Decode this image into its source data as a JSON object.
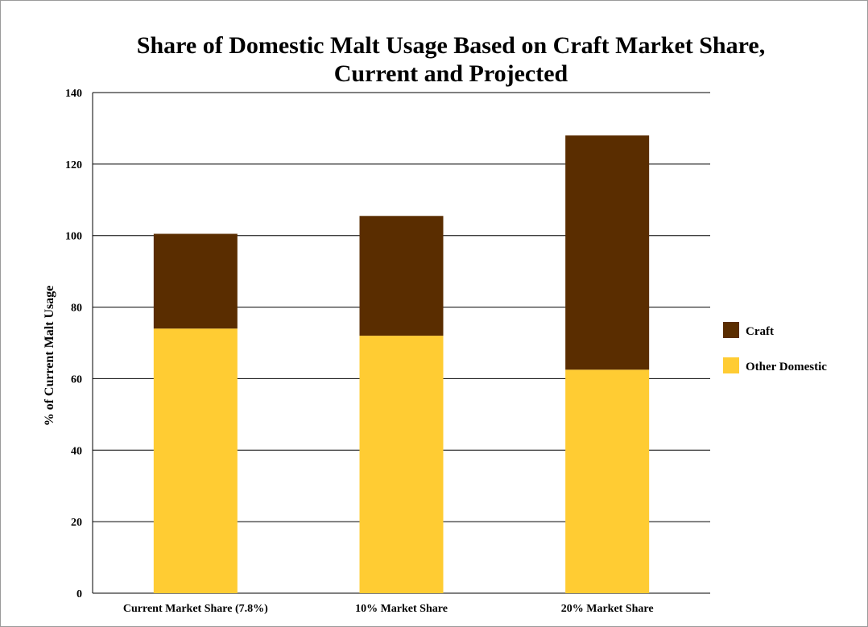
{
  "chart_data": {
    "type": "bar",
    "stacked": true,
    "title": "Share of Domestic Malt Usage Based on Craft Market Share, Current and Projected",
    "title_lines": [
      "Share of Domestic Malt Usage Based on Craft Market Share,",
      "Current and Projected"
    ],
    "xlabel": "",
    "ylabel": "% of Current Malt Usage",
    "ylim": [
      0,
      140
    ],
    "yticks": [
      0,
      20,
      40,
      60,
      80,
      100,
      120,
      140
    ],
    "grid": true,
    "legend_position": "right",
    "categories": [
      "Current Market Share (7.8%)",
      "10% Market Share",
      "20% Market Share"
    ],
    "series": [
      {
        "name": "Other Domestic",
        "color": "#FFCC33",
        "values": [
          74,
          72,
          62.5
        ]
      },
      {
        "name": "Craft",
        "color": "#5A2D00",
        "values": [
          26.5,
          33.5,
          65.5
        ]
      }
    ],
    "legend_order": [
      "Craft",
      "Other Domestic"
    ]
  }
}
